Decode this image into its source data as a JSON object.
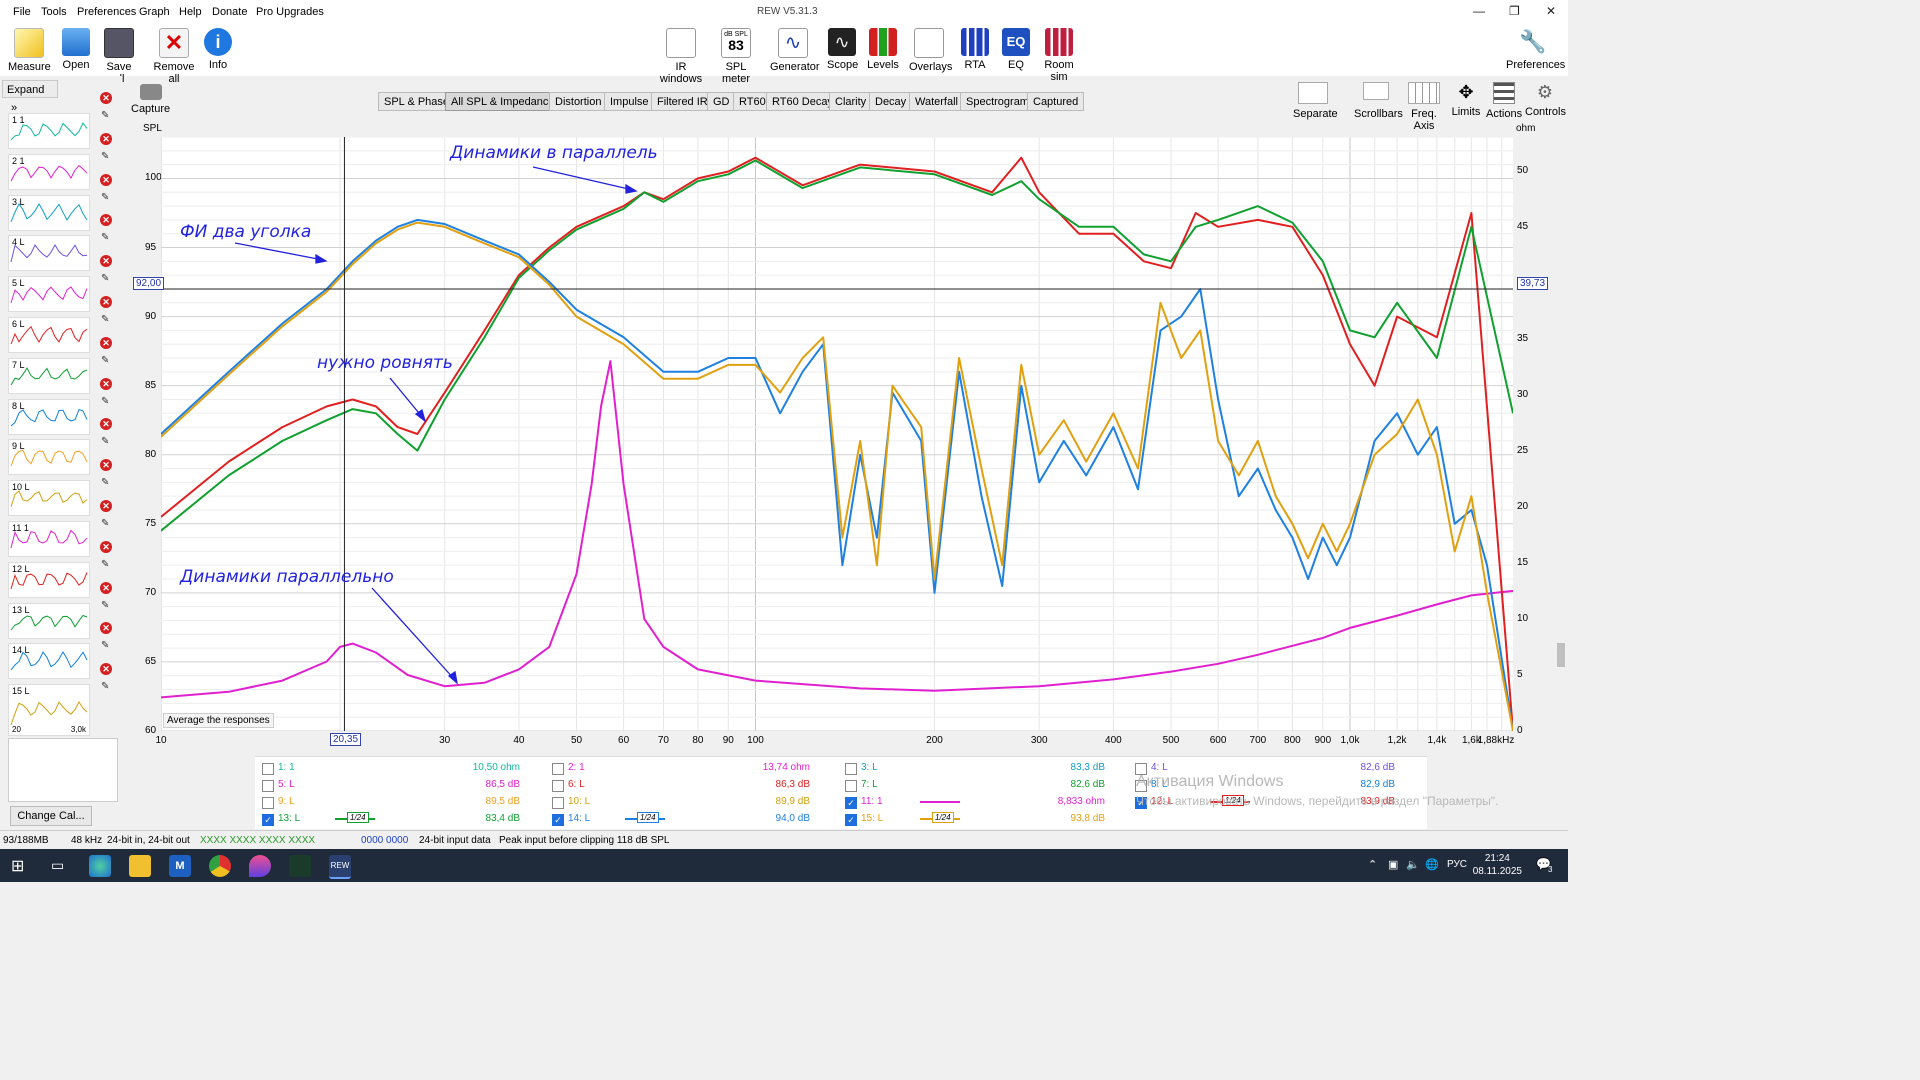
{
  "window": {
    "title": "REW V5.31.3",
    "menu": [
      "File",
      "Tools",
      "Preferences",
      "Graph",
      "Help",
      "Donate",
      "Pro Upgrades"
    ],
    "controls": {
      "minimize": "—",
      "maximize": "❐",
      "close": "✕"
    }
  },
  "toolbar": {
    "left": [
      "Measure",
      "Open",
      "Save all",
      "Remove all",
      "Info"
    ],
    "center": [
      "IR windows",
      "SPL meter",
      "Generator",
      "Scope",
      "Levels",
      "Overlays",
      "RTA",
      "EQ",
      "Room sim"
    ],
    "spl_meter_top": "dB SPL",
    "spl_meter_value": "83",
    "eq_icon_text": "EQ",
    "right": "Preferences"
  },
  "left_panel": {
    "expand": "Expand",
    "capture": "Capture",
    "change_cal": "Change Cal...",
    "measurements": [
      {
        "label": "1 1",
        "color": "#10b8a0"
      },
      {
        "label": "2 1",
        "color": "#e020d0"
      },
      {
        "label": "3 L",
        "color": "#10a0c0"
      },
      {
        "label": "4 L",
        "color": "#7050e0"
      },
      {
        "label": "5 L",
        "color": "#e020d0"
      },
      {
        "label": "6 L",
        "color": "#e02020"
      },
      {
        "label": "7 L",
        "color": "#10a030"
      },
      {
        "label": "8 L",
        "color": "#1080e0"
      },
      {
        "label": "9 L",
        "color": "#f0a020"
      },
      {
        "label": "10 L",
        "color": "#d0a010"
      },
      {
        "label": "11 1",
        "color": "#e020d0"
      },
      {
        "label": "12 L",
        "color": "#e02020"
      },
      {
        "label": "13 L",
        "color": "#10a030"
      },
      {
        "label": "14 L",
        "color": "#1080e0"
      },
      {
        "label": "15 L",
        "color": "#d0a010"
      }
    ],
    "slot15_min": "20",
    "slot15_max": "3,0k"
  },
  "tabs": [
    "SPL & Phase",
    "All SPL & Impedance",
    "Distortion",
    "Impulse",
    "Filtered IR",
    "GD",
    "RT60",
    "RT60 Decay",
    "Clarity",
    "Decay",
    "Waterfall",
    "Spectrogram",
    "Captured"
  ],
  "active_tab": "All SPL & Impedance",
  "right_tools": [
    "Separate",
    "Scrollbars",
    "Freq. Axis",
    "Limits",
    "Actions",
    "Controls"
  ],
  "plot": {
    "y_left_unit": "SPL",
    "y_right_unit": "ohm",
    "y_left_ticks": [
      "100",
      "95",
      "90",
      "85",
      "80",
      "75",
      "70",
      "65",
      "60"
    ],
    "y_right_ticks": [
      "50",
      "45",
      "40",
      "35",
      "30",
      "25",
      "20",
      "15",
      "10",
      "5",
      "0"
    ],
    "x_ticks": [
      "10",
      "20,35",
      "30",
      "40",
      "50",
      "60",
      "70",
      "80",
      "90",
      "100",
      "200",
      "300",
      "400",
      "500",
      "600",
      "700",
      "800",
      "900",
      "1,0k",
      "1,2k",
      "1,4k",
      "1,6k",
      "1,88kHz"
    ],
    "cursor_left": "92,00",
    "cursor_right": "39,73",
    "cursor_x": "20,35",
    "avg_button": "Average the responses",
    "annotations": {
      "a1": "Динамики  в  параллель",
      "a2": "ФИ  два  уголка",
      "a3": "нужно ровнять",
      "a4": "Динамики  параллельно"
    }
  },
  "chart_data": {
    "type": "line",
    "title": "",
    "xlabel": "",
    "ylabel": "SPL",
    "y2label": "ohm",
    "xscale": "log",
    "xlim": [
      10,
      1880
    ],
    "ylim": [
      60,
      103
    ],
    "y2lim": [
      0,
      53
    ],
    "grid": true,
    "series": [
      {
        "name": "11: 1",
        "axis": "right",
        "color": "#e020d0",
        "x": [
          10,
          13,
          16,
          19,
          20,
          21,
          23,
          26,
          30,
          35,
          40,
          45,
          50,
          53,
          55,
          57,
          60,
          65,
          70,
          80,
          100,
          150,
          200,
          300,
          400,
          500,
          600,
          700,
          800,
          900,
          1000,
          1200,
          1400,
          1600,
          1880
        ],
        "y": [
          3.0,
          3.5,
          4.5,
          6.2,
          7.5,
          7.8,
          7.0,
          5.0,
          4.0,
          4.3,
          5.5,
          7.5,
          14.0,
          22.0,
          29.0,
          33.0,
          22.0,
          10.0,
          7.5,
          5.5,
          4.5,
          3.8,
          3.6,
          4.0,
          4.6,
          5.3,
          6.0,
          6.8,
          7.6,
          8.3,
          9.2,
          10.3,
          11.3,
          12.1,
          12.5
        ]
      },
      {
        "name": "12: L",
        "axis": "left",
        "color": "#e02020",
        "x": [
          10,
          13,
          16,
          19,
          21,
          23,
          25,
          27,
          30,
          35,
          40,
          45,
          50,
          60,
          65,
          70,
          80,
          90,
          100,
          120,
          150,
          200,
          250,
          280,
          300,
          350,
          400,
          450,
          500,
          550,
          600,
          700,
          800,
          900,
          1000,
          1100,
          1200,
          1400,
          1600,
          1880
        ],
        "y": [
          75.5,
          79.5,
          82.0,
          83.5,
          84.0,
          83.5,
          82.0,
          81.5,
          84.5,
          89.0,
          93.0,
          95.0,
          96.5,
          98.0,
          99.0,
          98.5,
          100.0,
          100.5,
          101.5,
          99.5,
          101.0,
          100.5,
          99.0,
          101.5,
          99.0,
          96.0,
          96.0,
          94.0,
          93.5,
          97.5,
          96.5,
          97.0,
          96.5,
          93.0,
          88.0,
          85.0,
          90.0,
          88.5,
          97.5,
          60.0
        ]
      },
      {
        "name": "13: L",
        "axis": "left",
        "color": "#10a030",
        "x": [
          10,
          13,
          16,
          19,
          21,
          23,
          25,
          27,
          30,
          35,
          40,
          45,
          50,
          60,
          65,
          70,
          80,
          90,
          100,
          120,
          150,
          200,
          250,
          280,
          300,
          350,
          400,
          450,
          500,
          550,
          600,
          700,
          800,
          900,
          1000,
          1100,
          1200,
          1400,
          1600,
          1880
        ],
        "y": [
          74.5,
          78.5,
          81.0,
          82.5,
          83.3,
          83.0,
          81.5,
          80.3,
          84.0,
          88.5,
          92.8,
          94.8,
          96.3,
          97.8,
          99.0,
          98.3,
          99.8,
          100.3,
          101.3,
          99.3,
          100.8,
          100.3,
          98.8,
          99.8,
          98.5,
          96.5,
          96.5,
          94.5,
          94.0,
          96.5,
          97.0,
          98.0,
          96.8,
          94.0,
          89.0,
          88.5,
          91.0,
          87.0,
          96.5,
          83.0
        ]
      },
      {
        "name": "14: L",
        "axis": "left",
        "color": "#1e80e0",
        "x": [
          10,
          13,
          16,
          19,
          21,
          23,
          25,
          27,
          30,
          35,
          40,
          45,
          50,
          60,
          70,
          80,
          90,
          100,
          110,
          120,
          130,
          140,
          150,
          160,
          170,
          190,
          200,
          220,
          240,
          260,
          280,
          300,
          330,
          360,
          400,
          440,
          480,
          520,
          560,
          600,
          650,
          700,
          750,
          800,
          850,
          900,
          950,
          1000,
          1100,
          1200,
          1300,
          1400,
          1500,
          1600,
          1700,
          1880
        ],
        "y": [
          81.5,
          86.0,
          89.5,
          92.0,
          94.0,
          95.5,
          96.5,
          97.0,
          96.7,
          95.5,
          94.5,
          92.5,
          90.5,
          88.5,
          86.0,
          86.0,
          87.0,
          87.0,
          83.0,
          86.0,
          88.0,
          72.0,
          80.0,
          74.0,
          84.5,
          81.0,
          70.0,
          86.0,
          77.0,
          70.5,
          85.0,
          78.0,
          81.0,
          78.5,
          82.0,
          77.5,
          89.0,
          90.0,
          92.0,
          84.0,
          77.0,
          79.0,
          76.0,
          74.0,
          71.0,
          74.0,
          72.0,
          74.0,
          81.0,
          83.0,
          80.0,
          82.0,
          75.0,
          76.0,
          72.0,
          60.0
        ]
      },
      {
        "name": "15: L",
        "axis": "left",
        "color": "#e0a010",
        "x": [
          10,
          13,
          16,
          19,
          21,
          23,
          25,
          27,
          30,
          35,
          40,
          45,
          50,
          60,
          70,
          80,
          90,
          100,
          110,
          120,
          130,
          140,
          150,
          160,
          170,
          190,
          200,
          220,
          240,
          260,
          280,
          300,
          330,
          360,
          400,
          440,
          480,
          520,
          560,
          600,
          650,
          700,
          750,
          800,
          850,
          900,
          950,
          1000,
          1100,
          1200,
          1300,
          1400,
          1500,
          1600,
          1700,
          1880
        ],
        "y": [
          81.3,
          85.8,
          89.3,
          91.8,
          93.8,
          95.3,
          96.3,
          96.8,
          96.5,
          95.3,
          94.3,
          92.3,
          90.0,
          88.0,
          85.5,
          85.5,
          86.5,
          86.5,
          84.5,
          87.0,
          88.5,
          74.0,
          81.0,
          72.0,
          85.0,
          82.0,
          71.0,
          87.0,
          79.0,
          72.0,
          86.5,
          80.0,
          82.5,
          79.5,
          83.0,
          79.0,
          91.0,
          87.0,
          89.0,
          81.0,
          78.5,
          81.0,
          77.0,
          75.0,
          72.5,
          75.0,
          73.0,
          75.0,
          80.0,
          81.5,
          84.0,
          80.0,
          73.0,
          77.0,
          70.0,
          60.0
        ]
      }
    ]
  },
  "legend": {
    "rows": [
      [
        {
          "label": "1: 1",
          "checked": false,
          "value": "10,50 ohm",
          "color": "#10b8a0"
        },
        {
          "label": "2: 1",
          "checked": false,
          "value": "13,74 ohm",
          "color": "#e020d0"
        },
        {
          "label": "3: L",
          "checked": false,
          "value": "83,3 dB",
          "color": "#10a0c0"
        },
        {
          "label": "4: L",
          "checked": false,
          "value": "82,6 dB",
          "color": "#7050e0"
        }
      ],
      [
        {
          "label": "5: L",
          "checked": false,
          "value": "86,5 dB",
          "color": "#e020d0"
        },
        {
          "label": "6: L",
          "checked": false,
          "value": "86,3 dB",
          "color": "#e02020"
        },
        {
          "label": "7: L",
          "checked": false,
          "value": "82,6 dB",
          "color": "#10a030"
        },
        {
          "label": "8: L",
          "checked": false,
          "value": "82,9 dB",
          "color": "#1080e0"
        }
      ],
      [
        {
          "label": "9: L",
          "checked": false,
          "value": "89,5 dB",
          "color": "#f0a020"
        },
        {
          "label": "10: L",
          "checked": false,
          "value": "89,9 dB",
          "color": "#d0a010"
        },
        {
          "label": "11: 1",
          "checked": true,
          "value": "8,833 ohm",
          "color": "#e020d0"
        },
        {
          "label": "12: L",
          "checked": true,
          "value": "83,9 dB",
          "color": "#e02020"
        }
      ],
      [
        {
          "label": "13: L",
          "checked": true,
          "value": "83,4 dB",
          "color": "#10a030"
        },
        {
          "label": "14: L",
          "checked": true,
          "value": "94,0 dB",
          "color": "#1e80e0"
        },
        {
          "label": "15: L",
          "checked": true,
          "value": "93,8 dB",
          "color": "#e0a010"
        }
      ]
    ],
    "smoothing": "1/24",
    "watermark1": "Активация Windows",
    "watermark2": "Чтобы активировать Windows, перейдите в раздел \"Параметры\"."
  },
  "status": {
    "memory": "93/188MB",
    "rate": "48 kHz",
    "bits": "24-bit in, 24-bit out",
    "xx": "XXXX XXXX XXXX XXXX",
    "zero": "0000 0000",
    "input": "24-bit input data",
    "peak": "Peak input before clipping 118 dB SPL"
  },
  "taskbar": {
    "lang": "РУС",
    "time": "21:24",
    "date": "08.11.2025",
    "notif": "3"
  }
}
